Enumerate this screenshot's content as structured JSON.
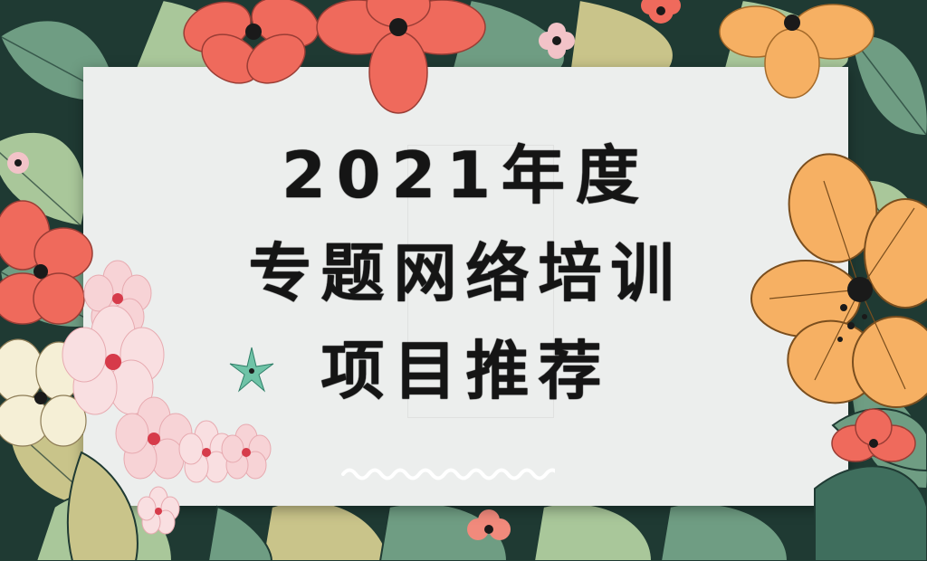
{
  "title": {
    "line1": "2021年度",
    "line2": "专题网络培训",
    "line3": "项目推荐"
  },
  "colors": {
    "card": "#eceeed",
    "text": "#151515",
    "leaf_dark": "#1f3a33",
    "leaf_green": "#6f9d83",
    "leaf_light": "#a9c79a",
    "leaf_olive": "#c9c48a",
    "red_flower": "#ef6a5c",
    "orange_flower": "#f6b063",
    "pink_blossom": "#f7d3d6",
    "wave": "#ffffff"
  }
}
